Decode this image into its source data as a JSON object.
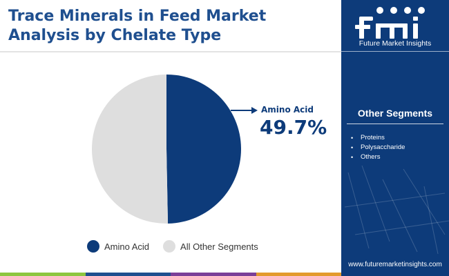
{
  "title_lines": [
    "Trace Minerals in Feed Market",
    "Analysis by Chelate Type"
  ],
  "chart_data": {
    "type": "pie",
    "title": "Trace Minerals in Feed Market Analysis by Chelate Type",
    "slices": [
      {
        "label": "Amino Acid",
        "value": 49.7,
        "color": "#0d3b7a"
      },
      {
        "label": "All Other Segments",
        "value": 50.3,
        "color": "#dedede"
      }
    ],
    "callout": {
      "label": "Amino Acid",
      "value_text": "49.7%"
    },
    "legend": {
      "placement": "bottom",
      "entries": [
        "Amino Acid",
        "All Other Segments"
      ]
    }
  },
  "footer_colors": [
    "#8dc63f",
    "#1f4f8f",
    "#7b3f98",
    "#e39a2d"
  ],
  "sidebar": {
    "brand_caption": "Future Market Insights",
    "other_segments_title": "Other Segments",
    "other_segments": [
      "Proteins",
      "Polysaccharide",
      "Others"
    ],
    "website": "www.futuremarketinsights.com",
    "background_color": "#0d3b7a"
  }
}
